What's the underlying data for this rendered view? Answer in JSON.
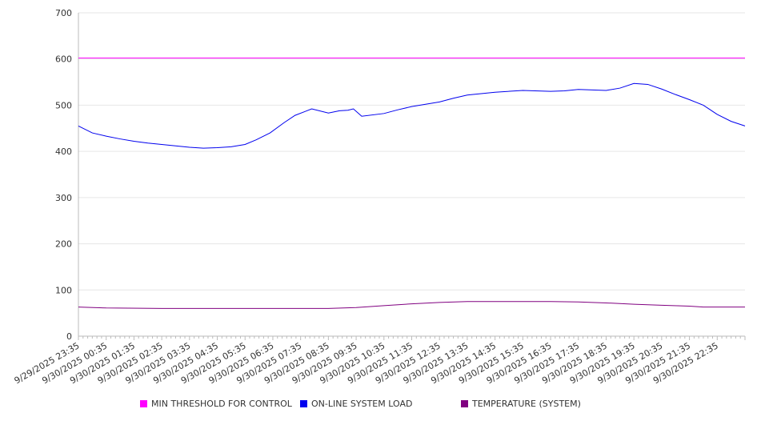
{
  "chart_data": {
    "type": "line",
    "title": "",
    "xlabel": "",
    "ylabel": "",
    "ylim": [
      0,
      700
    ],
    "yticks": [
      0,
      100,
      200,
      300,
      400,
      500,
      600,
      700
    ],
    "grid": true,
    "legend_position": "bottom",
    "x_unit": "hours since 9/29/2025 23:35",
    "xlim": [
      0,
      24
    ],
    "xtick_labels": [
      "9/29/2025 23:35",
      "9/30/2025 00:35",
      "9/30/2025 01:35",
      "9/30/2025 02:35",
      "9/30/2025 03:35",
      "9/30/2025 04:35",
      "9/30/2025 05:35",
      "9/30/2025 06:35",
      "9/30/2025 07:35",
      "9/30/2025 08:35",
      "9/30/2025 09:35",
      "9/30/2025 10:35",
      "9/30/2025 11:35",
      "9/30/2025 12:35",
      "9/30/2025 13:35",
      "9/30/2025 14:35",
      "9/30/2025 15:35",
      "9/30/2025 16:35",
      "9/30/2025 17:35",
      "9/30/2025 18:35",
      "9/30/2025 19:35",
      "9/30/2025 20:35",
      "9/30/2025 21:35",
      "9/30/2025 22:35"
    ],
    "series": [
      {
        "name": "MIN THRESHOLD FOR CONTROL",
        "color": "#ff00ff",
        "x": [
          0,
          24
        ],
        "y": [
          602,
          602
        ]
      },
      {
        "name": "ON-LINE SYSTEM LOAD",
        "color": "#0000ee",
        "x": [
          0,
          0.5,
          1,
          1.5,
          2,
          2.5,
          3,
          3.5,
          4,
          4.5,
          5,
          5.5,
          6,
          6.4,
          6.9,
          7.4,
          7.8,
          8.4,
          9,
          9.4,
          9.7,
          9.9,
          10.2,
          11,
          11.5,
          12,
          12.5,
          13,
          13.5,
          14,
          15,
          16,
          17,
          17.5,
          18,
          19,
          19.5,
          20,
          20.5,
          21,
          21.5,
          22,
          22.5,
          23,
          23.5,
          24
        ],
        "y": [
          455,
          440,
          433,
          427,
          422,
          418,
          415,
          412,
          409,
          407,
          408,
          410,
          415,
          425,
          440,
          462,
          478,
          492,
          483,
          488,
          489,
          492,
          476,
          482,
          490,
          497,
          502,
          507,
          515,
          522,
          528,
          532,
          530,
          531,
          534,
          532,
          537,
          547,
          545,
          535,
          523,
          512,
          500,
          480,
          465,
          455
        ]
      },
      {
        "name": "TEMPERATURE (SYSTEM)",
        "color": "#800080",
        "x": [
          0,
          1,
          3,
          9,
          10,
          11,
          12,
          13,
          14,
          15,
          16,
          17,
          18,
          19,
          20,
          21,
          22,
          22.5,
          24
        ],
        "y": [
          63,
          61,
          60,
          60,
          62,
          66,
          70,
          73,
          75,
          75,
          75,
          75,
          74,
          72,
          69,
          67,
          65,
          63,
          63
        ]
      }
    ]
  }
}
